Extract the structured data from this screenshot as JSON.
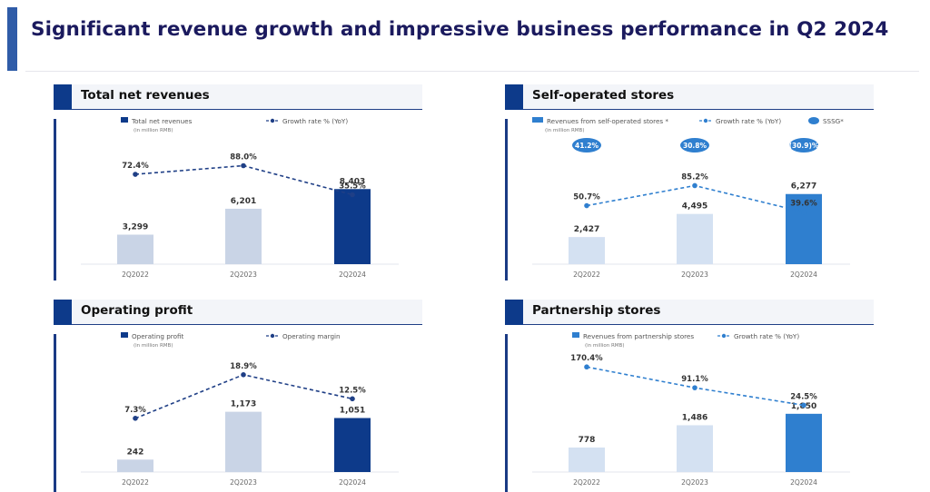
{
  "slide": {
    "title": "Significant revenue growth and impressive business performance in Q2 2024"
  },
  "colors": {
    "title": "#1b1a5e",
    "navy": "#0d3a8a",
    "blue": "#2f7fcf",
    "light_bar": "#c9d4e6",
    "line": "#1f3f86"
  },
  "chart_data": [
    {
      "id": "total-net-revenues",
      "title": "Total net revenues",
      "type": "bar",
      "unit_note": "(in million RMB)",
      "categories": [
        "2Q2022",
        "2Q2023",
        "2Q2024"
      ],
      "series": [
        {
          "name": "Total net revenues",
          "kind": "bar",
          "values": [
            3299,
            6201,
            8403
          ],
          "value_labels": [
            "3,299",
            "6,201",
            "8,403"
          ],
          "colors": [
            "#c9d4e6",
            "#c9d4e6",
            "#0d3a8a"
          ]
        },
        {
          "name": "Growth rate % (YoY)",
          "kind": "line",
          "values": [
            72.4,
            88.0,
            35.5
          ],
          "value_labels": [
            "72.4%",
            "88.0%",
            "35.5%"
          ],
          "color": "#1f3f86"
        }
      ],
      "ylim_bar": [
        0,
        13000
      ],
      "ylim_line": [
        -90,
        120
      ]
    },
    {
      "id": "self-operated-stores",
      "title": "Self-operated stores",
      "type": "bar",
      "unit_note": "(in million RMB)",
      "categories": [
        "2Q2022",
        "2Q2023",
        "2Q2024"
      ],
      "series": [
        {
          "name": "Revenues from self-operated stores",
          "kind": "bar",
          "values": [
            2427,
            4495,
            6277
          ],
          "value_labels": [
            "2,427",
            "4,495",
            "6,277"
          ],
          "colors": [
            "#d4e1f2",
            "#d4e1f2",
            "#2f7fcf"
          ]
        },
        {
          "name": "Growth rate % (YoY)",
          "kind": "line",
          "values": [
            50.7,
            85.2,
            39.6
          ],
          "value_labels": [
            "50.7%",
            "85.2%",
            "39.6%"
          ],
          "color": "#2f7fcf"
        },
        {
          "name": "SSSG",
          "kind": "badge",
          "values": [
            41.2,
            30.8,
            -30.9
          ],
          "value_labels": [
            "41.2%",
            "30.8%",
            "(30.9)%"
          ],
          "color": "#2f7fcf"
        }
      ],
      "ylim_bar": [
        0,
        10400
      ],
      "ylim_line": [
        -50,
        150
      ]
    },
    {
      "id": "operating-profit",
      "title": "Operating profit",
      "type": "bar",
      "unit_note": "(in million RMB)",
      "categories": [
        "2Q2022",
        "2Q2023",
        "2Q2024"
      ],
      "series": [
        {
          "name": "Operating profit",
          "kind": "bar",
          "values": [
            242,
            1173,
            1051
          ],
          "value_labels": [
            "242",
            "1,173",
            "1,051"
          ],
          "colors": [
            "#c9d4e6",
            "#c9d4e6",
            "#0d3a8a"
          ]
        },
        {
          "name": "Operating margin",
          "kind": "line",
          "values": [
            7.3,
            18.9,
            12.5
          ],
          "value_labels": [
            "7.3%",
            "18.9%",
            "12.5%"
          ],
          "color": "#1f3f86"
        }
      ],
      "ylim_bar": [
        0,
        2120
      ],
      "ylim_line": [
        -7,
        22
      ]
    },
    {
      "id": "partnership-stores",
      "title": "Partnership stores",
      "type": "bar",
      "unit_note": "(in million RMB)",
      "categories": [
        "2Q2022",
        "2Q2023",
        "2Q2024"
      ],
      "series": [
        {
          "name": "Revenues from partnership stores",
          "kind": "bar",
          "values": [
            778,
            1486,
            1850
          ],
          "value_labels": [
            "778",
            "1,486",
            "1,850"
          ],
          "colors": [
            "#d4e1f2",
            "#d4e1f2",
            "#2f7fcf"
          ]
        },
        {
          "name": "Growth rate % (YoY)",
          "kind": "line",
          "values": [
            170.4,
            91.1,
            24.5
          ],
          "value_labels": [
            "170.4%",
            "91.1%",
            "24.5%"
          ],
          "color": "#2f7fcf"
        }
      ],
      "ylim_bar": [
        0,
        3460
      ],
      "ylim_line": [
        -230,
        185
      ]
    }
  ]
}
